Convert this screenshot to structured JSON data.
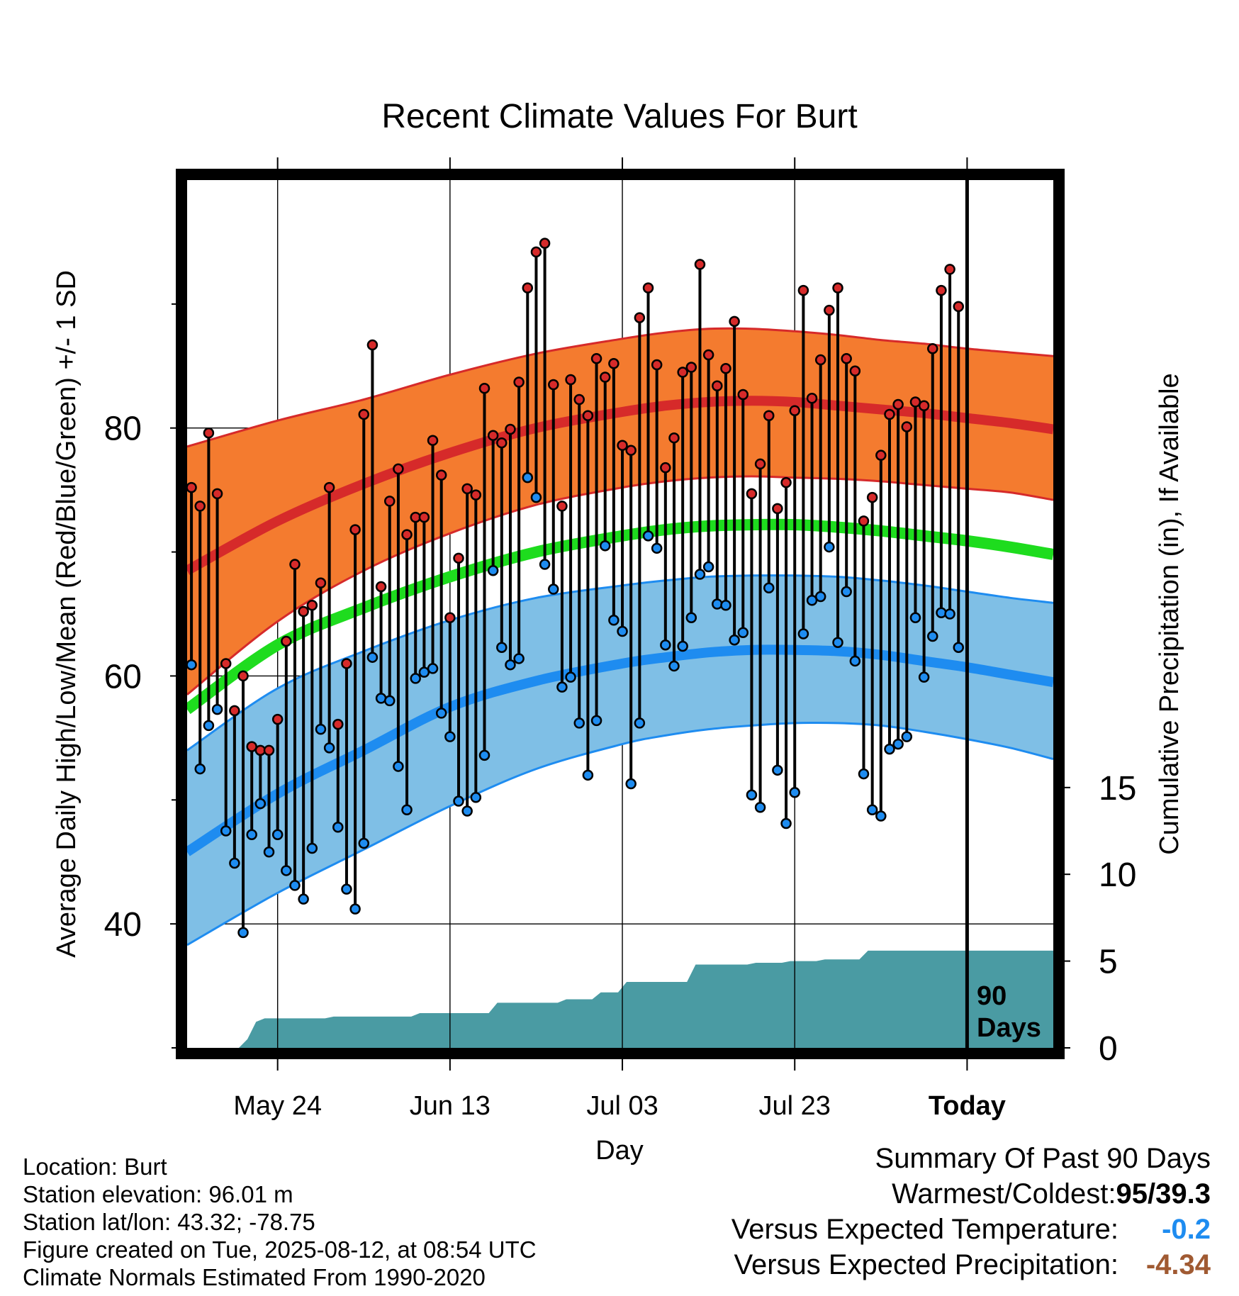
{
  "chart_data": {
    "type": "line",
    "title": "Recent Climate Values For Burt",
    "xlabel": "Day",
    "ylabel": "Average Daily High/Low/Mean (Red/Blue/Green) +/- 1 SD",
    "y2label": "Cumulative Precipitation (in), If Available",
    "ylim": [
      30,
      100
    ],
    "y2lim": [
      0,
      50
    ],
    "yticks": [
      40,
      60,
      80
    ],
    "yminor": [
      30,
      50,
      70,
      90
    ],
    "y2ticks": [
      0,
      5,
      10,
      15
    ],
    "xlim": [
      -0.5,
      100
    ],
    "xticks": [
      {
        "x": 10,
        "label": "May 24"
      },
      {
        "x": 30,
        "label": "Jun 13"
      },
      {
        "x": 50,
        "label": "Jul 03"
      },
      {
        "x": 70,
        "label": "Jul 23"
      },
      {
        "x": 90,
        "label": "Today"
      }
    ],
    "day0": "May 14",
    "today_marker": {
      "x": 90,
      "label_line1": "90",
      "label_line2": "Days"
    },
    "grid": true,
    "colors": {
      "high_band": "#f47b2f",
      "high_mean": "#d62a2a",
      "high_edge": "#d62a2a",
      "low_band": "#7fbfe6",
      "low_mean": "#1e8cf0",
      "low_edge": "#1e8cf0",
      "mean": "#1edc1e",
      "precip": "#4a9ba3",
      "high_dot": "#d62a2a",
      "low_dot": "#1e8cf0",
      "minus_temp": "#1e8cf0",
      "minus_precip": "#a05a32"
    },
    "normals": {
      "x": [
        -0.5,
        10,
        20,
        30,
        40,
        50,
        55,
        60,
        65,
        70,
        75,
        80,
        85,
        90,
        95,
        100
      ],
      "high_mean": [
        68.5,
        72.5,
        75.5,
        78.0,
        80.0,
        81.3,
        81.8,
        82.1,
        82.2,
        82.1,
        81.8,
        81.5,
        81.2,
        80.8,
        80.4,
        79.9
      ],
      "high_upper": [
        78.5,
        80.6,
        82.3,
        84.3,
        86.0,
        87.2,
        87.7,
        88.0,
        88.0,
        87.8,
        87.5,
        87.1,
        86.8,
        86.4,
        86.1,
        85.8
      ],
      "high_lower": [
        58.5,
        64.4,
        68.5,
        71.5,
        73.8,
        75.2,
        75.7,
        76.0,
        76.1,
        76.0,
        75.9,
        75.7,
        75.4,
        75.1,
        74.8,
        74.2
      ],
      "mean": [
        57.3,
        62.5,
        65.5,
        68.0,
        70.0,
        71.3,
        71.8,
        72.1,
        72.2,
        72.2,
        72.0,
        71.7,
        71.3,
        70.9,
        70.4,
        69.8
      ],
      "low_mean": [
        45.8,
        50.5,
        54.0,
        57.5,
        59.6,
        61.0,
        61.5,
        61.9,
        62.1,
        62.1,
        62.0,
        61.7,
        61.2,
        60.7,
        60.1,
        59.5
      ],
      "low_upper": [
        54.0,
        59.0,
        62.0,
        64.5,
        66.3,
        67.3,
        67.7,
        68.0,
        68.1,
        68.1,
        68.0,
        67.7,
        67.3,
        66.8,
        66.3,
        65.9
      ],
      "low_lower": [
        38.3,
        42.5,
        46.0,
        49.5,
        52.5,
        54.5,
        55.2,
        55.7,
        56.0,
        56.2,
        56.2,
        56.0,
        55.5,
        54.9,
        54.2,
        53.3
      ]
    },
    "series": [
      {
        "name": "High",
        "values": [
          75.2,
          73.7,
          79.6,
          74.7,
          61.0,
          57.2,
          60.0,
          54.3,
          54.0,
          54.0,
          56.5,
          62.8,
          69.0,
          65.2,
          65.7,
          67.5,
          75.2,
          56.1,
          61.0,
          71.8,
          81.1,
          86.7,
          67.2,
          74.1,
          76.7,
          71.4,
          72.8,
          72.8,
          79.0,
          76.2,
          64.7,
          69.5,
          75.1,
          74.6,
          83.2,
          79.4,
          78.8,
          79.9,
          83.7,
          91.3,
          94.2,
          94.9,
          83.5,
          73.7,
          83.9,
          82.3,
          81.0,
          85.6,
          84.1,
          85.2,
          78.6,
          78.2,
          88.9,
          91.3,
          85.1,
          76.8,
          79.2,
          84.5,
          84.9,
          93.2,
          85.9,
          83.4,
          84.8,
          88.6,
          82.7,
          74.7,
          77.1,
          81.0,
          73.5,
          75.6,
          81.4,
          91.1,
          82.4,
          85.5,
          89.5,
          91.3,
          85.6,
          84.6,
          72.5,
          74.4,
          77.8,
          81.1,
          81.9,
          80.1,
          82.1,
          81.8,
          86.4,
          91.1,
          92.8,
          89.8
        ]
      },
      {
        "name": "Low",
        "values": [
          60.9,
          52.5,
          56.0,
          57.3,
          47.5,
          44.9,
          39.3,
          47.2,
          49.7,
          45.8,
          47.2,
          44.3,
          43.1,
          42.0,
          46.1,
          55.7,
          54.2,
          47.8,
          42.8,
          41.2,
          46.5,
          61.5,
          58.2,
          58.0,
          52.7,
          49.2,
          59.8,
          60.3,
          60.6,
          57.0,
          55.1,
          49.9,
          49.1,
          50.2,
          53.6,
          68.5,
          62.3,
          60.9,
          61.4,
          76.0,
          74.4,
          69.0,
          67.0,
          59.1,
          59.9,
          56.2,
          52.0,
          56.4,
          70.5,
          64.5,
          63.6,
          51.3,
          56.2,
          71.3,
          70.3,
          62.5,
          60.8,
          62.4,
          64.7,
          68.2,
          68.8,
          65.8,
          65.7,
          62.9,
          63.5,
          50.4,
          49.4,
          67.1,
          52.4,
          48.1,
          50.6,
          63.4,
          66.1,
          66.4,
          70.4,
          62.7,
          66.8,
          61.2,
          52.1,
          49.2,
          48.7,
          54.1,
          54.5,
          55.1,
          64.7,
          59.9,
          63.2,
          65.1,
          65.0,
          62.3
        ]
      }
    ],
    "precip": {
      "x": [
        -0.5,
        5.5,
        6.5,
        7.5,
        8.5,
        15.5,
        16.5,
        25.5,
        26.5,
        34.5,
        35.5,
        42.5,
        43.5,
        46.5,
        47.5,
        49.5,
        50.5,
        57.5,
        58.5,
        64.5,
        65.5,
        68.5,
        69.5,
        72.5,
        73.5,
        77.5,
        78.5,
        100
      ],
      "y": [
        0,
        0,
        0.5,
        1.5,
        1.7,
        1.7,
        1.8,
        1.8,
        2.0,
        2.0,
        2.6,
        2.6,
        2.8,
        2.8,
        3.2,
        3.2,
        3.8,
        3.8,
        4.8,
        4.8,
        4.9,
        4.9,
        5.0,
        5.0,
        5.1,
        5.1,
        5.6,
        5.6
      ]
    }
  },
  "info": {
    "location": "Location: Burt",
    "elevation": "Station elevation: 96.01 m",
    "latlon": "Station lat/lon: 43.32; -78.75",
    "created": "Figure created on Tue, 2025-08-12, at 08:54 UTC",
    "normals": "Climate Normals Estimated From 1990-2020"
  },
  "summary": {
    "title": "Summary Of Past 90 Days",
    "warmest_label": "Warmest/Coldest:",
    "warmest_value": "95/39.3",
    "temp_label": "Versus Expected Temperature:",
    "temp_value": "-0.2",
    "precip_label": "Versus Expected Precipitation:",
    "precip_value": "-4.34"
  }
}
